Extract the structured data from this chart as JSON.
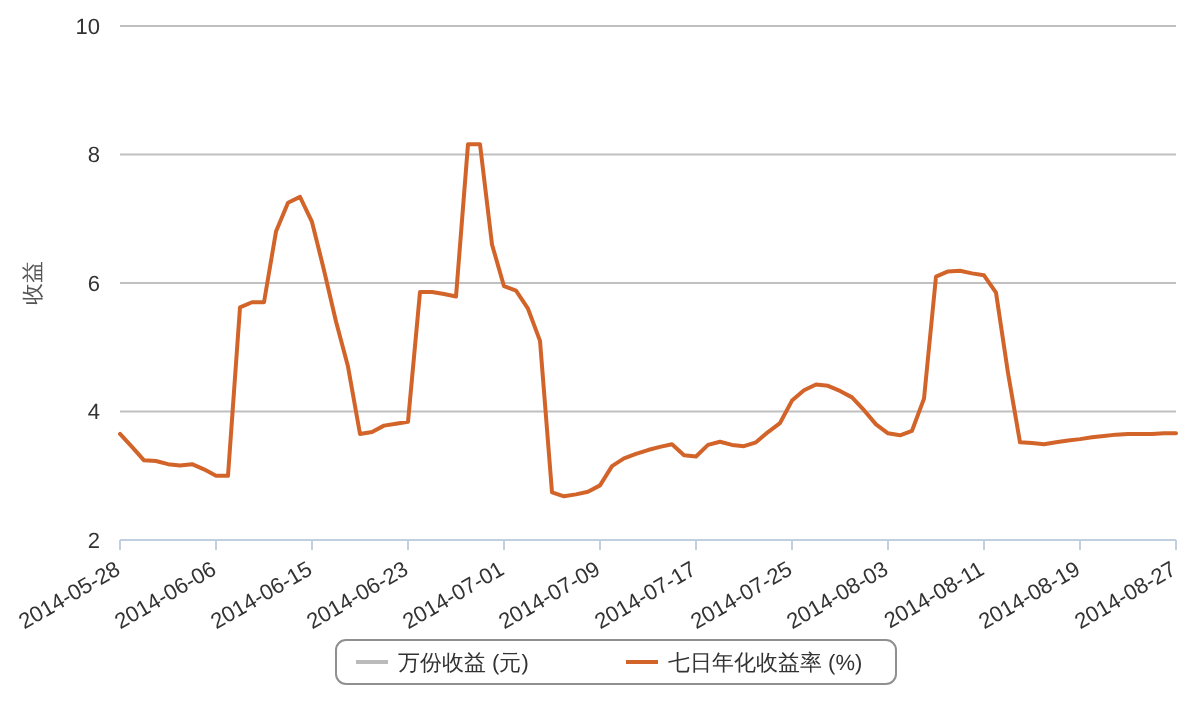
{
  "chart_data": {
    "type": "line",
    "ylabel": "收益",
    "categories": [
      "2014-05-28",
      null,
      null,
      null,
      null,
      null,
      null,
      null,
      "2014-06-06",
      null,
      null,
      null,
      null,
      null,
      null,
      null,
      "2014-06-15",
      null,
      null,
      null,
      null,
      null,
      null,
      null,
      "2014-06-23",
      null,
      null,
      null,
      null,
      null,
      null,
      null,
      "2014-07-01",
      null,
      null,
      null,
      null,
      null,
      null,
      null,
      "2014-07-09",
      null,
      null,
      null,
      null,
      null,
      null,
      null,
      "2014-07-17",
      null,
      null,
      null,
      null,
      null,
      null,
      null,
      "2014-07-25",
      null,
      null,
      null,
      null,
      null,
      null,
      null,
      "2014-08-03",
      null,
      null,
      null,
      null,
      null,
      null,
      null,
      "2014-08-11",
      null,
      null,
      null,
      null,
      null,
      null,
      null,
      "2014-08-19",
      null,
      null,
      null,
      null,
      null,
      null,
      null,
      "2014-08-27"
    ],
    "series": [
      {
        "name": "万份收益 (元)",
        "color": "#bbbbbb",
        "values": [
          null,
          null,
          null,
          null,
          null,
          null,
          null,
          null,
          null,
          null,
          null,
          null,
          null,
          null,
          null,
          null,
          null,
          null,
          null,
          null,
          null,
          null,
          null,
          null,
          null,
          null,
          null,
          null,
          null,
          null,
          null,
          null,
          null,
          null,
          null,
          null,
          null,
          null,
          null,
          null,
          null,
          null,
          null,
          null,
          null,
          null,
          null,
          null,
          null,
          null,
          null,
          null,
          null,
          null,
          null,
          null,
          null,
          null,
          null,
          null,
          null,
          null,
          null,
          null,
          null,
          null,
          null,
          null,
          null,
          null,
          null,
          null,
          null,
          null,
          null,
          null,
          null,
          null,
          null,
          null,
          null,
          null,
          null,
          null,
          null,
          null,
          null,
          null,
          null
        ]
      },
      {
        "name": "七日年化收益率 (%)",
        "color": "#d2642a",
        "values": [
          3.65,
          3.45,
          3.24,
          3.23,
          3.18,
          3.16,
          3.18,
          3.1,
          3.0,
          3.0,
          5.62,
          5.7,
          5.7,
          6.8,
          7.25,
          7.34,
          6.95,
          6.2,
          5.4,
          4.7,
          3.65,
          3.68,
          3.78,
          3.81,
          3.84,
          5.86,
          5.86,
          5.83,
          5.79,
          8.16,
          8.16,
          6.6,
          5.95,
          5.88,
          5.6,
          5.1,
          2.74,
          2.68,
          2.71,
          2.75,
          2.85,
          3.15,
          3.27,
          3.34,
          3.4,
          3.45,
          3.49,
          3.32,
          3.3,
          3.48,
          3.53,
          3.48,
          3.46,
          3.52,
          3.68,
          3.82,
          4.17,
          4.33,
          4.42,
          4.4,
          4.32,
          4.22,
          4.02,
          3.8,
          3.66,
          3.63,
          3.7,
          4.2,
          6.1,
          6.18,
          6.19,
          6.15,
          6.12,
          5.85,
          4.6,
          3.52,
          3.51,
          3.49,
          3.52,
          3.55,
          3.57,
          3.6,
          3.62,
          3.64,
          3.65,
          3.65,
          3.65,
          3.66,
          3.66
        ]
      }
    ],
    "ylim": [
      2,
      10
    ],
    "yticks": [
      2,
      4,
      6,
      8,
      10
    ],
    "grid": "y",
    "legend": "bottom"
  }
}
